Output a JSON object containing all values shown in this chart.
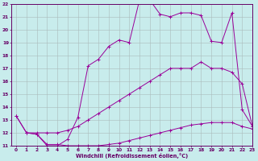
{
  "xlabel": "Windchill (Refroidissement éolien,°C)",
  "bg_color": "#c8ecec",
  "line_color": "#990099",
  "grid_color": "#aabbbb",
  "xlim": [
    -0.5,
    23
  ],
  "ylim": [
    11,
    22
  ],
  "yticks": [
    11,
    12,
    13,
    14,
    15,
    16,
    17,
    18,
    19,
    20,
    21,
    22
  ],
  "xticks": [
    0,
    1,
    2,
    3,
    4,
    5,
    6,
    7,
    8,
    9,
    10,
    11,
    12,
    13,
    14,
    15,
    16,
    17,
    18,
    19,
    20,
    21,
    22,
    23
  ],
  "curve1_x": [
    0,
    1,
    2,
    3,
    4,
    5,
    6,
    7,
    8,
    9,
    10,
    11,
    12,
    13,
    14,
    15,
    16,
    17,
    18,
    19,
    20,
    21,
    22,
    23
  ],
  "curve1_y": [
    13.3,
    12.0,
    11.9,
    11.0,
    11.0,
    11.5,
    13.2,
    17.2,
    17.7,
    18.7,
    19.2,
    19.0,
    22.3,
    22.3,
    21.2,
    21.0,
    21.3,
    21.3,
    21.1,
    19.1,
    19.0,
    21.3,
    13.8,
    12.5
  ],
  "curve2_x": [
    0,
    1,
    2,
    3,
    4,
    5,
    6,
    7,
    8,
    9,
    10,
    11,
    12,
    13,
    14,
    15,
    16,
    17,
    18,
    19,
    20,
    21,
    22,
    23
  ],
  "curve2_y": [
    13.3,
    12.0,
    12.0,
    12.0,
    12.0,
    12.2,
    12.5,
    13.0,
    13.5,
    14.0,
    14.5,
    15.0,
    15.5,
    16.0,
    16.5,
    17.0,
    17.0,
    17.0,
    17.5,
    17.0,
    17.0,
    16.7,
    15.8,
    12.5
  ],
  "curve3_x": [
    1,
    2,
    3,
    4,
    5,
    6,
    7,
    8,
    9,
    10,
    11,
    12,
    13,
    14,
    15,
    16,
    17,
    18,
    19,
    20,
    21,
    22,
    23
  ],
  "curve3_y": [
    12.0,
    11.9,
    11.1,
    11.1,
    11.0,
    11.0,
    11.0,
    11.0,
    11.1,
    11.2,
    11.4,
    11.6,
    11.8,
    12.0,
    12.2,
    12.4,
    12.6,
    12.7,
    12.8,
    12.8,
    12.8,
    12.5,
    12.3
  ]
}
